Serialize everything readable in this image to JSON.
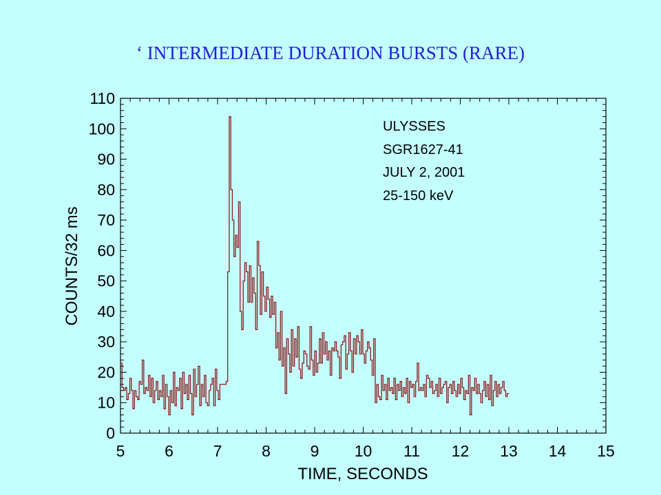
{
  "slide": {
    "title": "‘ INTERMEDIATE DURATION BURSTS (RARE)",
    "colors": {
      "background": "#c4ffff",
      "title": "#1f1fd6",
      "trace": "#8b1a1a",
      "axes": "#000000"
    }
  },
  "chart_data": {
    "type": "line",
    "step": true,
    "xlabel": "TIME, SECONDS",
    "ylabel": "COUNTS/32 ms",
    "xlim": [
      5,
      15
    ],
    "ylim": [
      0,
      110
    ],
    "xticks": [
      5,
      6,
      7,
      8,
      9,
      10,
      11,
      12,
      13,
      14,
      15
    ],
    "yticks": [
      0,
      10,
      20,
      30,
      40,
      50,
      60,
      70,
      80,
      90,
      100,
      110
    ],
    "grid": false,
    "annotations": [
      "ULYSSES",
      "SGR1627-41",
      "JULY 2, 2001",
      "25-150 keV"
    ],
    "series": [
      {
        "bin_width": 0.032,
        "x_start": 5.0,
        "values": [
          23,
          15,
          14,
          15,
          11,
          13,
          18,
          14,
          8,
          14,
          12,
          11,
          17,
          16,
          24,
          13,
          15,
          14,
          19,
          12,
          18,
          10,
          14,
          17,
          11,
          14,
          12,
          19,
          8,
          16,
          12,
          6,
          14,
          10,
          20,
          9,
          15,
          14,
          18,
          8,
          20,
          13,
          16,
          11,
          19,
          13,
          6,
          21,
          12,
          16,
          22,
          9,
          16,
          12,
          19,
          10,
          9,
          14,
          16,
          18,
          9,
          21,
          14,
          11,
          16,
          16,
          16,
          16,
          17,
          53,
          104,
          80,
          70,
          58,
          65,
          61,
          76,
          40,
          34,
          50,
          56,
          53,
          43,
          55,
          43,
          51,
          46,
          34,
          63,
          55,
          39,
          53,
          45,
          40,
          48,
          44,
          38,
          45,
          39,
          43,
          28,
          33,
          24,
          40,
          22,
          28,
          13,
          31,
          26,
          20,
          34,
          22,
          31,
          25,
          35,
          21,
          18,
          23,
          27,
          26,
          22,
          21,
          35,
          24,
          19,
          27,
          20,
          23,
          31,
          23,
          33,
          26,
          30,
          24,
          27,
          19,
          28,
          27,
          30,
          27,
          25,
          18,
          29,
          30,
          32,
          21,
          26,
          33,
          27,
          20,
          31,
          26,
          32,
          30,
          26,
          34,
          26,
          23,
          27,
          30,
          28,
          24,
          19,
          31,
          10,
          16,
          12,
          11,
          19,
          14,
          16,
          11,
          18,
          14,
          15,
          13,
          18,
          11,
          16,
          14,
          17,
          12,
          15,
          13,
          18,
          10,
          17,
          15,
          16,
          12,
          17,
          23,
          14,
          15,
          14,
          16,
          12,
          19,
          18,
          15,
          17,
          13,
          14,
          16,
          12,
          18,
          13,
          15,
          16,
          17,
          10,
          15,
          16,
          13,
          17,
          14,
          12,
          16,
          13,
          18,
          15,
          11,
          14,
          13,
          19,
          6,
          15,
          14,
          18,
          13,
          16,
          13,
          10,
          14,
          17,
          12,
          16,
          11,
          19,
          9,
          14,
          17,
          12,
          16,
          13,
          15,
          17,
          14,
          12,
          13
        ]
      }
    ]
  }
}
